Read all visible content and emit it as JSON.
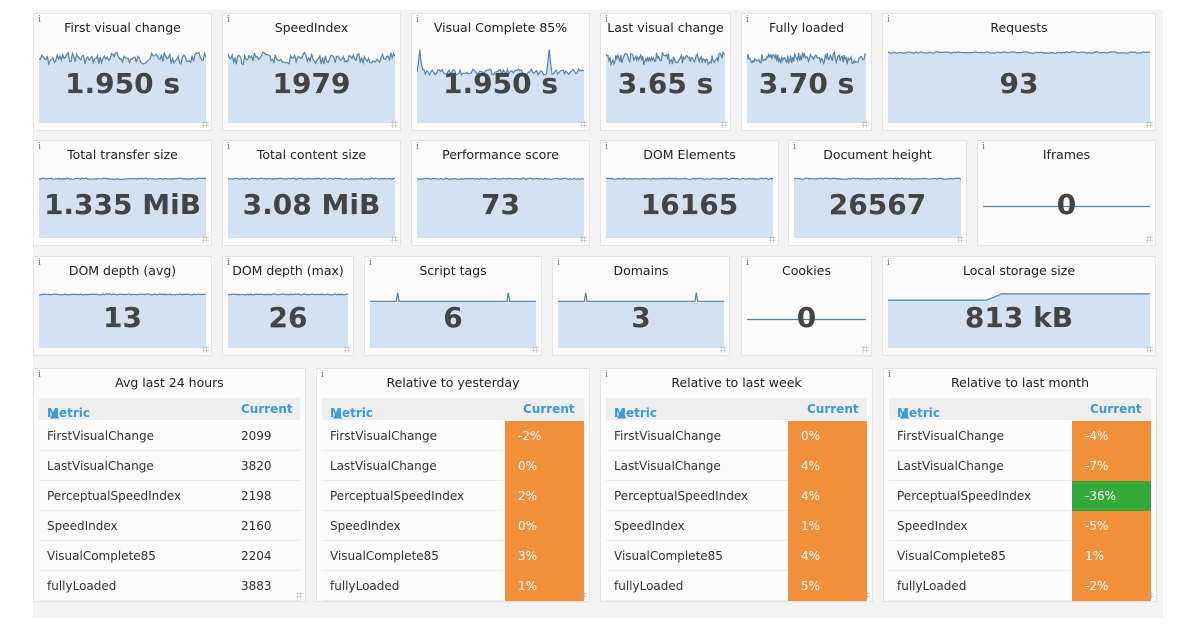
{
  "colors": {
    "orange": "#f28f3b",
    "green": "#36a93b",
    "area_fill": "#d3e2f2",
    "line": "#5883a8",
    "accent": "#3d9ad8"
  },
  "stats": [
    {
      "title": "First visual change",
      "value": "1.950 s",
      "spark": "noisy"
    },
    {
      "title": "SpeedIndex",
      "value": "1979",
      "spark": "noisy"
    },
    {
      "title": "Visual Complete 85%",
      "value": "1.950 s",
      "spark": "spiky"
    },
    {
      "title": "Last visual change",
      "value": "3.65 s",
      "spark": "noisy"
    },
    {
      "title": "Fully loaded",
      "value": "3.70 s",
      "spark": "noisy"
    },
    {
      "title": "Requests",
      "value": "93",
      "spark": "flat"
    },
    {
      "title": "Total transfer size",
      "value": "1.335 MiB",
      "spark": "flat"
    },
    {
      "title": "Total content size",
      "value": "3.08 MiB",
      "spark": "flat"
    },
    {
      "title": "Performance score",
      "value": "73",
      "spark": "flat"
    },
    {
      "title": "DOM Elements",
      "value": "16165",
      "spark": "flat"
    },
    {
      "title": "Document height",
      "value": "26567",
      "spark": "flat"
    },
    {
      "title": "Iframes",
      "value": "0",
      "spark": "line"
    },
    {
      "title": "DOM depth (avg)",
      "value": "13",
      "spark": "flat"
    },
    {
      "title": "DOM depth (max)",
      "value": "26",
      "spark": "flat"
    },
    {
      "title": "Script tags",
      "value": "6",
      "spark": "bumps"
    },
    {
      "title": "Domains",
      "value": "3",
      "spark": "bumps"
    },
    {
      "title": "Cookies",
      "value": "0",
      "spark": "line"
    },
    {
      "title": "Local storage size",
      "value": "813 kB",
      "spark": "step"
    }
  ],
  "tables": [
    {
      "title": "Avg last 24 hours",
      "metric_header": "Metric",
      "current_header": "Current",
      "colored": false,
      "rows": [
        {
          "metric": "FirstVisualChange",
          "current": "2099"
        },
        {
          "metric": "LastVisualChange",
          "current": "3820"
        },
        {
          "metric": "PerceptualSpeedIndex",
          "current": "2198"
        },
        {
          "metric": "SpeedIndex",
          "current": "2160"
        },
        {
          "metric": "VisualComplete85",
          "current": "2204"
        },
        {
          "metric": "fullyLoaded",
          "current": "3883"
        }
      ]
    },
    {
      "title": "Relative to yesterday",
      "metric_header": "Metric",
      "current_header": "Current",
      "colored": true,
      "rows": [
        {
          "metric": "FirstVisualChange",
          "current": "-2%",
          "status": "orange"
        },
        {
          "metric": "LastVisualChange",
          "current": "0%",
          "status": "orange"
        },
        {
          "metric": "PerceptualSpeedIndex",
          "current": "2%",
          "status": "orange"
        },
        {
          "metric": "SpeedIndex",
          "current": "0%",
          "status": "orange"
        },
        {
          "metric": "VisualComplete85",
          "current": "3%",
          "status": "orange"
        },
        {
          "metric": "fullyLoaded",
          "current": "1%",
          "status": "orange"
        }
      ]
    },
    {
      "title": "Relative to last week",
      "metric_header": "Metric",
      "current_header": "Current",
      "colored": true,
      "rows": [
        {
          "metric": "FirstVisualChange",
          "current": "0%",
          "status": "orange"
        },
        {
          "metric": "LastVisualChange",
          "current": "4%",
          "status": "orange"
        },
        {
          "metric": "PerceptualSpeedIndex",
          "current": "4%",
          "status": "orange"
        },
        {
          "metric": "SpeedIndex",
          "current": "1%",
          "status": "orange"
        },
        {
          "metric": "VisualComplete85",
          "current": "4%",
          "status": "orange"
        },
        {
          "metric": "fullyLoaded",
          "current": "5%",
          "status": "orange"
        }
      ]
    },
    {
      "title": "Relative to last month",
      "metric_header": "Metric",
      "current_header": "Current",
      "colored": true,
      "rows": [
        {
          "metric": "FirstVisualChange",
          "current": "-4%",
          "status": "orange"
        },
        {
          "metric": "LastVisualChange",
          "current": "-7%",
          "status": "orange"
        },
        {
          "metric": "PerceptualSpeedIndex",
          "current": "-36%",
          "status": "green"
        },
        {
          "metric": "SpeedIndex",
          "current": "-5%",
          "status": "orange"
        },
        {
          "metric": "VisualComplete85",
          "current": "1%",
          "status": "orange"
        },
        {
          "metric": "fullyLoaded",
          "current": "-2%",
          "status": "orange"
        }
      ]
    }
  ]
}
